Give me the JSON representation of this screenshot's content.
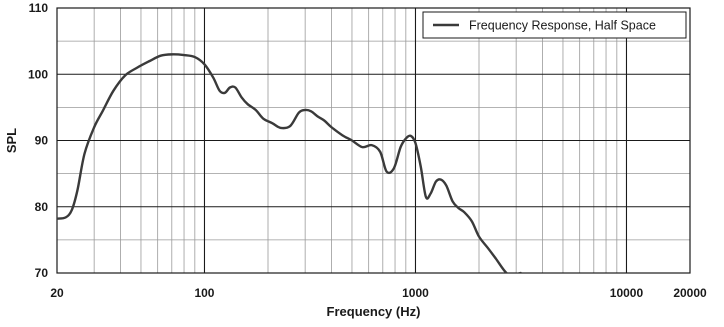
{
  "chart_data": {
    "type": "line",
    "title": "",
    "xlabel": "Frequency (Hz)",
    "ylabel": "SPL",
    "x_scale": "log",
    "xlim": [
      20,
      20000
    ],
    "ylim": [
      70,
      110
    ],
    "x_ticks": [
      20,
      100,
      1000,
      10000,
      20000
    ],
    "x_tick_labels": [
      "20",
      "100",
      "1000",
      "10000",
      "20000"
    ],
    "y_ticks": [
      70,
      80,
      90,
      100,
      110
    ],
    "y_tick_labels": [
      "70",
      "80",
      "90",
      "100",
      "110"
    ],
    "grid": true,
    "legend_position": "top-right",
    "series": [
      {
        "name": "Frequency Response, Half Space",
        "color": "#3a3a3a",
        "x": [
          20,
          22,
          23.5,
          25,
          27,
          30,
          33,
          37,
          42,
          48,
          55,
          62,
          70,
          80,
          90,
          100,
          110,
          118,
          125,
          132,
          140,
          150,
          160,
          175,
          190,
          210,
          230,
          255,
          280,
          300,
          320,
          345,
          370,
          400,
          450,
          500,
          560,
          620,
          680,
          730,
          790,
          850,
          900,
          950,
          1000,
          1060,
          1120,
          1180,
          1250,
          1320,
          1400,
          1500,
          1600,
          1700,
          1850,
          2000,
          2200,
          2400,
          2700,
          2950,
          3150
        ],
        "y": [
          78.2,
          78.4,
          79.5,
          82.5,
          88.0,
          92.0,
          94.5,
          97.5,
          99.8,
          101.0,
          102.0,
          102.8,
          103.0,
          102.9,
          102.6,
          101.5,
          99.5,
          97.5,
          97.2,
          98.0,
          98.0,
          96.5,
          95.5,
          94.6,
          93.3,
          92.6,
          91.9,
          92.2,
          94.2,
          94.6,
          94.4,
          93.6,
          93.0,
          92.0,
          90.8,
          90.0,
          89.0,
          89.3,
          88.3,
          85.3,
          85.8,
          89.0,
          90.3,
          90.7,
          89.6,
          86.0,
          81.5,
          82.0,
          83.8,
          84.1,
          83.2,
          80.8,
          79.8,
          79.2,
          77.8,
          75.5,
          73.8,
          72.2,
          70.0,
          69.8,
          70.0
        ]
      }
    ]
  }
}
